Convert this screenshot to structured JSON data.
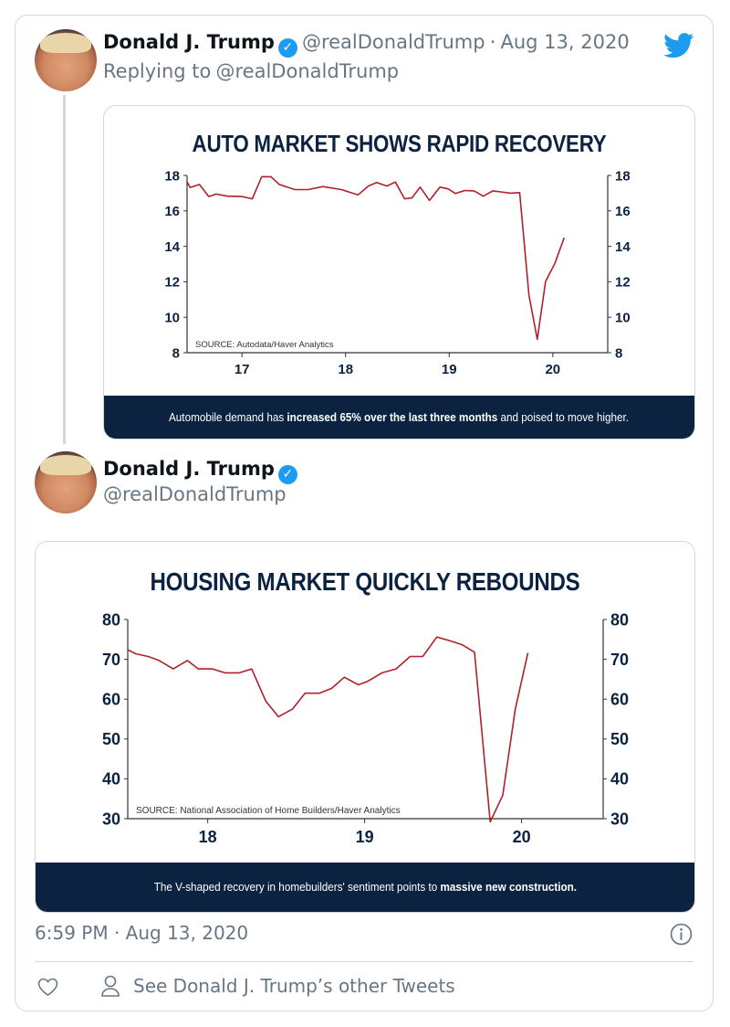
{
  "tweet1": {
    "name": "Donald J. Trump",
    "handle": "@realDonaldTrump",
    "separator": "·",
    "date": "Aug 13, 2020",
    "replying_prefix": "Replying to",
    "replying_handle": "@realDonaldTrump",
    "verified": true
  },
  "tweet2": {
    "name": "Donald J. Trump",
    "handle": "@realDonaldTrump",
    "verified": true,
    "timestamp": "6:59 PM · Aug 13, 2020",
    "other_tweets_label": "See Donald J. Trump’s other Tweets"
  },
  "icons": {
    "logo": "twitter-bird-icon",
    "verified": "verified-badge-icon",
    "info": "info-icon",
    "like": "heart-icon",
    "profile": "person-icon"
  },
  "colors": {
    "twitter_blue": "#1d9bf0",
    "chart_line": "#b0202a",
    "chart_navy": "#0b2340"
  },
  "chart_data": [
    {
      "type": "line",
      "title": "AUTO MARKET SHOWS RAPID RECOVERY",
      "source": "SOURCE: Autodata/Haver Analytics",
      "caption": {
        "prefix": "Automobile demand has ",
        "bold": "increased 65% over the last three months",
        "suffix": " and poised to move higher."
      },
      "xlim": [
        16.47,
        20.53
      ],
      "ylim": [
        8,
        18
      ],
      "x_ticks": [
        "17",
        "18",
        "19",
        "20"
      ],
      "y_ticks": [
        "8",
        "10",
        "12",
        "14",
        "16",
        "18"
      ],
      "dual_y_axis": true,
      "grid": false,
      "series": [
        {
          "x": [
            16.47,
            16.5,
            16.59,
            16.68,
            16.75,
            16.86,
            17.0,
            17.1,
            17.19,
            17.28,
            17.36,
            17.51,
            17.64,
            17.78,
            17.96,
            18.12,
            18.22,
            18.3,
            18.4,
            18.48,
            18.57,
            18.64,
            18.72,
            18.81,
            18.91,
            18.99,
            19.06,
            19.15,
            19.24,
            19.33,
            19.42,
            19.5,
            19.59,
            19.68,
            19.77,
            19.85,
            19.93,
            20.02,
            20.11
          ],
          "y": [
            17.63,
            17.32,
            17.49,
            16.81,
            16.95,
            16.83,
            16.81,
            16.68,
            17.93,
            17.93,
            17.49,
            17.2,
            17.2,
            17.37,
            17.2,
            16.9,
            17.4,
            17.6,
            17.4,
            17.63,
            16.68,
            16.73,
            17.34,
            16.59,
            17.34,
            17.24,
            16.98,
            17.15,
            17.13,
            16.83,
            17.13,
            17.07,
            17.0,
            17.03,
            11.23,
            8.75,
            12.02,
            13.04,
            14.49
          ]
        }
      ]
    },
    {
      "type": "line",
      "title": "HOUSING MARKET QUICKLY REBOUNDS",
      "source": "SOURCE: National Association of Home Builders/Haver Analytics",
      "caption": {
        "prefix": "The V-shaped recovery in homebuilders' sentiment points to ",
        "bold": "massive new construction.",
        "suffix": ""
      },
      "xlim": [
        17.49,
        20.52
      ],
      "ylim": [
        30,
        80
      ],
      "x_ticks": [
        "18",
        "19",
        "20"
      ],
      "y_ticks": [
        "30",
        "40",
        "50",
        "60",
        "70",
        "80"
      ],
      "dual_y_axis": true,
      "grid": false,
      "series": [
        {
          "x": [
            17.49,
            17.54,
            17.62,
            17.69,
            17.78,
            17.87,
            17.94,
            18.03,
            18.11,
            18.2,
            18.28,
            18.37,
            18.45,
            18.54,
            18.62,
            18.71,
            18.79,
            18.87,
            18.96,
            19.02,
            19.11,
            19.2,
            19.29,
            19.37,
            19.46,
            19.54,
            19.62,
            19.7,
            19.8,
            19.88,
            19.96,
            20.04
          ],
          "y": [
            72.4,
            71.4,
            70.7,
            69.7,
            67.6,
            69.7,
            67.6,
            67.6,
            66.6,
            66.6,
            67.6,
            59.5,
            55.6,
            57.5,
            61.5,
            61.5,
            62.7,
            65.5,
            63.6,
            64.5,
            66.6,
            67.6,
            70.7,
            70.7,
            75.6,
            74.7,
            73.7,
            71.8,
            29.2,
            35.9,
            57.5,
            71.6
          ]
        }
      ]
    }
  ]
}
